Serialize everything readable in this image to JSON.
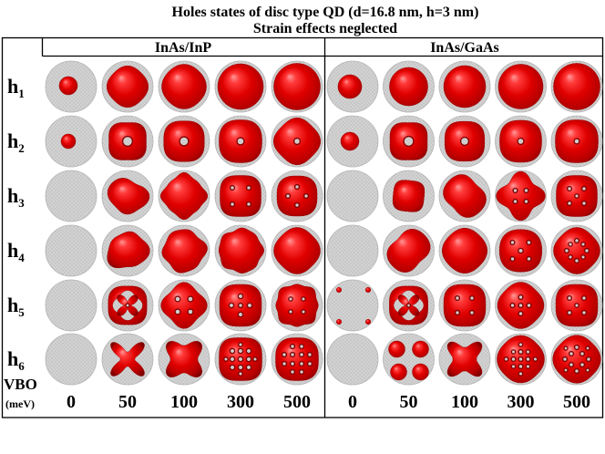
{
  "title": {
    "line1": "Holes states of disc type QD (d=16.8 nm, h=3 nm)",
    "line2": "Strain effects neglected"
  },
  "materials": [
    "InAs/InP",
    "InAs/GaAs"
  ],
  "rows": [
    {
      "symbol": "h",
      "index": "1"
    },
    {
      "symbol": "h",
      "index": "2"
    },
    {
      "symbol": "h",
      "index": "3"
    },
    {
      "symbol": "h",
      "index": "4"
    },
    {
      "symbol": "h",
      "index": "5"
    },
    {
      "symbol": "h",
      "index": "6"
    }
  ],
  "vbo": {
    "label": "VBO",
    "unit": "(meV)",
    "values": [
      "0",
      "50",
      "100",
      "300",
      "500"
    ]
  },
  "colors": {
    "isosurface": "#e00000",
    "disc": "#d0d0d0",
    "rule": "#000000"
  }
}
